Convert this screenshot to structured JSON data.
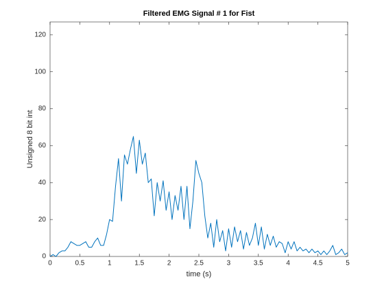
{
  "chart_data": {
    "type": "line",
    "title": "Filtered EMG Signal # 1 for Fist",
    "xlabel": "time (s)",
    "ylabel": "Unsigned 8 bit int",
    "xlim": [
      0,
      5
    ],
    "ylim": [
      0,
      127
    ],
    "xticks": [
      0,
      0.5,
      1,
      1.5,
      2,
      2.5,
      3,
      3.5,
      4,
      4.5,
      5
    ],
    "yticks": [
      0,
      20,
      40,
      60,
      80,
      100,
      120
    ],
    "series": [
      {
        "name": "EMG",
        "color": "#0072bd",
        "x": [
          0,
          0.05,
          0.1,
          0.15,
          0.2,
          0.25,
          0.3,
          0.35,
          0.4,
          0.45,
          0.5,
          0.55,
          0.6,
          0.65,
          0.7,
          0.75,
          0.8,
          0.85,
          0.9,
          0.95,
          1,
          1.05,
          1.1,
          1.15,
          1.2,
          1.25,
          1.3,
          1.35,
          1.4,
          1.45,
          1.5,
          1.55,
          1.6,
          1.65,
          1.7,
          1.75,
          1.8,
          1.85,
          1.9,
          1.95,
          2,
          2.05,
          2.1,
          2.15,
          2.2,
          2.25,
          2.3,
          2.35,
          2.4,
          2.45,
          2.5,
          2.55,
          2.6,
          2.65,
          2.7,
          2.75,
          2.8,
          2.85,
          2.9,
          2.95,
          3,
          3.05,
          3.1,
          3.15,
          3.2,
          3.25,
          3.3,
          3.35,
          3.4,
          3.45,
          3.5,
          3.55,
          3.6,
          3.65,
          3.7,
          3.75,
          3.8,
          3.85,
          3.9,
          3.95,
          4,
          4.05,
          4.1,
          4.15,
          4.2,
          4.25,
          4.3,
          4.35,
          4.4,
          4.45,
          4.5,
          4.55,
          4.6,
          4.65,
          4.7,
          4.75,
          4.8,
          4.85,
          4.9,
          4.95,
          5
        ],
        "values": [
          0,
          1,
          0,
          2,
          3,
          3,
          5,
          8,
          7,
          6,
          6,
          7,
          8,
          5,
          5,
          8,
          10,
          6,
          6,
          12,
          20,
          19,
          38,
          53,
          30,
          55,
          50,
          58,
          65,
          45,
          63,
          50,
          56,
          40,
          42,
          22,
          40,
          30,
          41,
          25,
          35,
          20,
          33,
          25,
          38,
          20,
          38,
          15,
          30,
          52,
          45,
          40,
          22,
          10,
          18,
          5,
          20,
          8,
          14,
          3,
          15,
          5,
          16,
          8,
          14,
          4,
          13,
          6,
          10,
          18,
          6,
          16,
          4,
          12,
          6,
          11,
          5,
          8,
          7,
          2,
          8,
          4,
          8,
          3,
          5,
          3,
          4,
          2,
          4,
          2,
          3,
          1,
          3,
          1,
          3,
          6,
          1,
          2,
          4,
          1,
          2
        ]
      }
    ],
    "grid": false
  }
}
